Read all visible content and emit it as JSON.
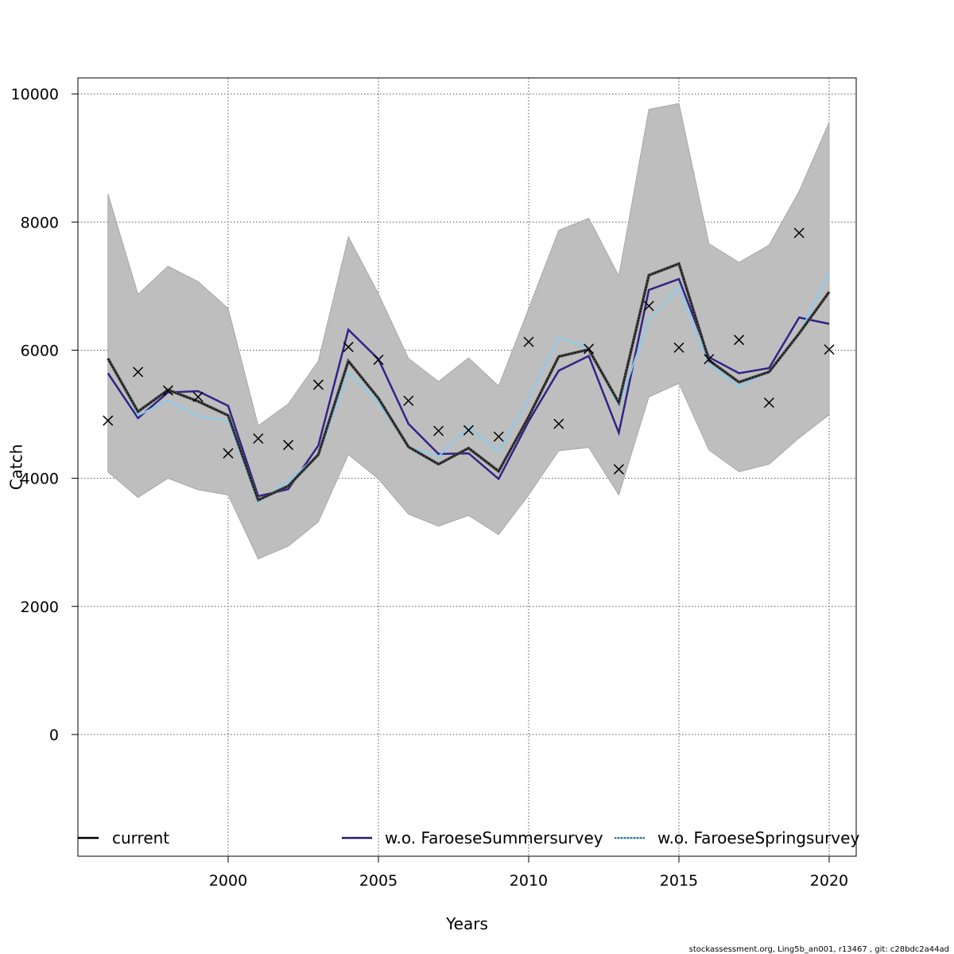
{
  "chart_data": {
    "type": "line",
    "xlabel": "Years",
    "ylabel": "Catch",
    "xlim": [
      1995.0,
      2020.9
    ],
    "ylim": [
      -1900,
      10250
    ],
    "x_ticks": [
      2000,
      2005,
      2010,
      2015,
      2020
    ],
    "x_tick_labels": [
      "2000",
      "2005",
      "2010",
      "2015",
      "2020"
    ],
    "y_ticks": [
      0,
      2000,
      4000,
      6000,
      8000,
      10000
    ],
    "y_tick_labels": [
      "0",
      "2000",
      "4000",
      "6000",
      "8000",
      "10000"
    ],
    "grid": true,
    "legend_position": "bottom",
    "x": [
      1996,
      1997,
      1998,
      1999,
      2000,
      2001,
      2002,
      2003,
      2004,
      2005,
      2006,
      2007,
      2008,
      2009,
      2010,
      2011,
      2012,
      2013,
      2014,
      2015,
      2016,
      2017,
      2018,
      2019,
      2020
    ],
    "band": {
      "lower": [
        4100,
        3700,
        4000,
        3820,
        3740,
        2740,
        2940,
        3320,
        4370,
        3990,
        3440,
        3250,
        3420,
        3120,
        3740,
        4430,
        4480,
        3740,
        5270,
        5480,
        4440,
        4100,
        4220,
        4630,
        4990
      ],
      "upper": [
        8440,
        6870,
        7310,
        7070,
        6650,
        4820,
        5160,
        5830,
        7770,
        6880,
        5870,
        5510,
        5880,
        5440,
        6650,
        7870,
        8060,
        7160,
        9760,
        9850,
        7660,
        7370,
        7640,
        8480,
        9560
      ],
      "color": "#bebebe"
    },
    "series": [
      {
        "name": "current",
        "color": "#000000",
        "values": [
          5870,
          5040,
          5380,
          5200,
          4980,
          3660,
          3880,
          4370,
          5830,
          5250,
          4490,
          4220,
          4470,
          4110,
          4960,
          5900,
          6010,
          5180,
          7170,
          7350,
          5840,
          5500,
          5660,
          6260,
          6910
        ]
      },
      {
        "name": "w.o. FaroeseSummersurvey",
        "color": "#332288",
        "values": [
          5640,
          4940,
          5340,
          5360,
          5130,
          3720,
          3830,
          4510,
          6320,
          5860,
          4850,
          4380,
          4390,
          3990,
          4890,
          5680,
          5910,
          4710,
          6940,
          7110,
          5890,
          5640,
          5720,
          6510,
          6410
        ]
      },
      {
        "name": "w.o. FaroeseSpringsurvey",
        "color": "#88ccee",
        "values": [
          5900,
          4980,
          5210,
          4970,
          4900,
          3620,
          3960,
          4360,
          5650,
          5180,
          4490,
          4340,
          4800,
          4420,
          5250,
          6200,
          6030,
          5130,
          6470,
          6980,
          5780,
          5430,
          5670,
          6250,
          7200
        ]
      }
    ],
    "observed": {
      "marker": "x",
      "values": [
        4900,
        5660,
        5370,
        5270,
        4390,
        4620,
        4520,
        5460,
        6050,
        5850,
        5210,
        4740,
        4750,
        4650,
        6130,
        4850,
        6020,
        4140,
        6690,
        6040,
        5860,
        6160,
        5180,
        7830,
        6010
      ]
    }
  },
  "footer": "stockassessment.org, Ling5b_an001, r13467 , git: c28bdc2a44ad"
}
